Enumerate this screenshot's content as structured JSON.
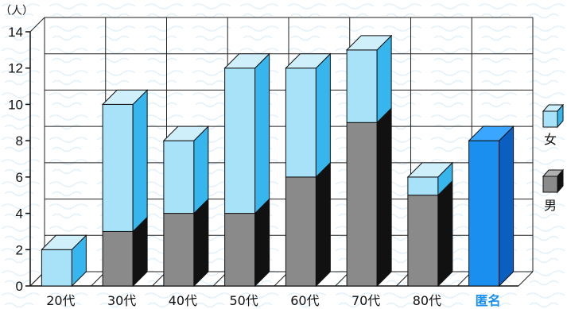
{
  "chart_data": {
    "type": "bar",
    "stacked": true,
    "style": "3d",
    "unit_label": "（人）",
    "categories": [
      "20代",
      "30代",
      "40代",
      "50代",
      "60代",
      "70代",
      "80代",
      "匿名"
    ],
    "series": [
      {
        "name": "男",
        "values": [
          0,
          3,
          4,
          4,
          6,
          9,
          5,
          0
        ]
      },
      {
        "name": "女",
        "values": [
          2,
          7,
          4,
          8,
          6,
          4,
          1,
          0
        ]
      }
    ],
    "unspecified_values": [
      0,
      0,
      0,
      0,
      0,
      0,
      0,
      8
    ],
    "ylim": [
      0,
      14
    ],
    "yticks": [
      0,
      2,
      4,
      6,
      8,
      10,
      12,
      14
    ],
    "grid": true,
    "legend_position": "right",
    "colors": {
      "女": "#a8e2f8",
      "男": "#8a8a8a",
      "匿名": "#1a8ff0",
      "highlight_label": "#1a8ff0"
    }
  }
}
